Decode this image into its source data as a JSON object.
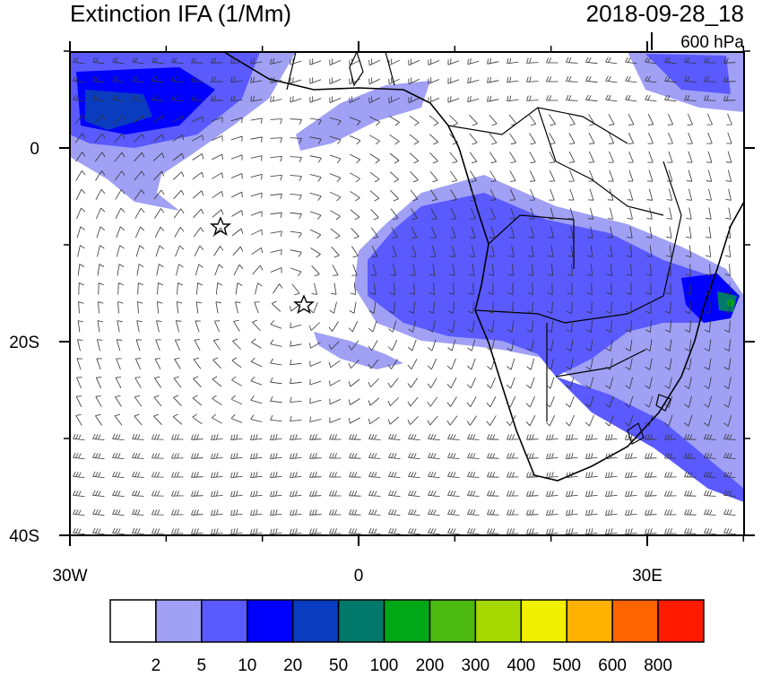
{
  "map": {
    "title": "Extinction IFA (1/Mm)",
    "time": "2018-09-28_18",
    "level": "600 hPa",
    "lon_ticks": [
      {
        "value": -30,
        "label": "30W"
      },
      0,
      {
        "value": 30,
        "label": "30E"
      }
    ],
    "lon_minor_ticks": [
      -20,
      -10,
      10,
      20,
      40
    ],
    "lat_ticks": [
      0,
      {
        "value": -20,
        "label": "20S"
      },
      {
        "value": -40,
        "label": "40S"
      }
    ],
    "lat_minor_ticks": [
      10,
      -10,
      -30
    ],
    "colorbar": {
      "levels": [
        2,
        5,
        10,
        20,
        50,
        100,
        200,
        300,
        400,
        500,
        600,
        800
      ],
      "colors": [
        "#ffffff",
        "#a0a0f5",
        "#5a5aff",
        "#0000ff",
        "#0a3cc0",
        "#00786a",
        "#00a818",
        "#4cba10",
        "#a4d800",
        "#f0f000",
        "#ffb000",
        "#ff6400",
        "#ff1a00"
      ]
    }
  }
}
